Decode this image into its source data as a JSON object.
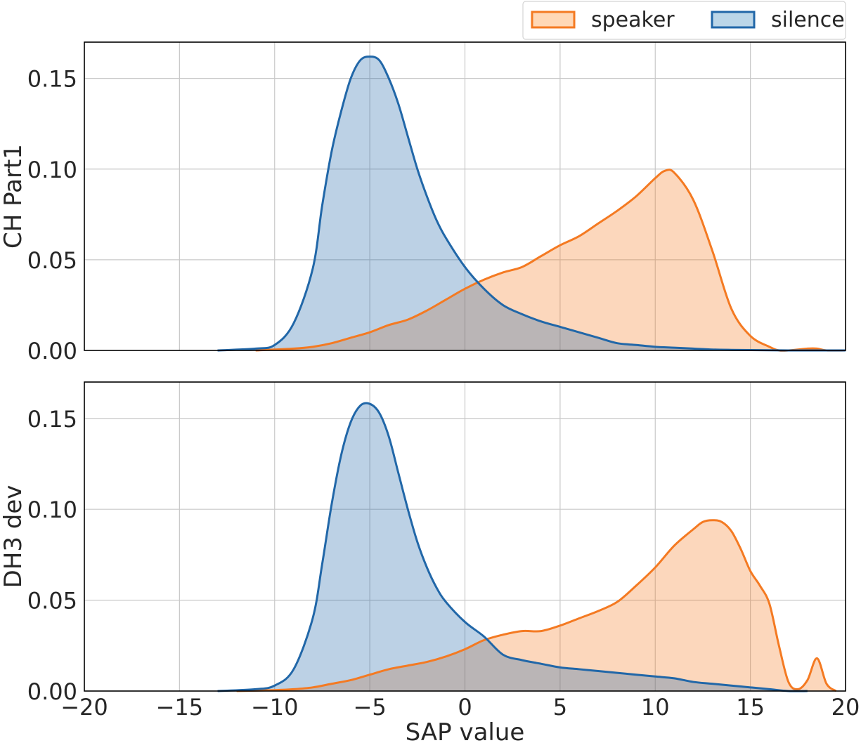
{
  "chart_data": {
    "type": "area",
    "subtype": "kde-density",
    "xlabel": "SAP value",
    "xlim": [
      -20,
      20
    ],
    "xticks": [
      -20,
      -15,
      -10,
      -5,
      0,
      5,
      10,
      15,
      20
    ],
    "xtick_labels": [
      "−20",
      "−15",
      "−10",
      "−5",
      "0",
      "5",
      "10",
      "15",
      "20"
    ],
    "yticks": [
      0.0,
      0.05,
      0.1,
      0.15
    ],
    "ytick_labels": [
      "0.00",
      "0.05",
      "0.10",
      "0.15"
    ],
    "grid": true,
    "legend": {
      "placement": "top-right, above plots",
      "entries": [
        {
          "name": "speaker",
          "color": "#ff7f0e"
        },
        {
          "name": "silence",
          "color": "#1f77b4"
        }
      ]
    },
    "colors": {
      "speaker": "#f47a22",
      "silence": "#2167a8",
      "fill_alpha": 0.3
    },
    "panels": [
      {
        "ylabel": "CH Part1",
        "ylim": [
          0,
          0.17
        ],
        "series": [
          {
            "name": "speaker",
            "x": [
              -11,
              -9,
              -8,
              -7,
              -6,
              -5,
              -4,
              -3,
              -2,
              -1,
              0,
              1,
              2,
              3,
              4,
              5,
              6,
              7,
              8,
              9,
              10,
              10.5,
              11,
              12,
              13,
              14,
              15,
              16,
              16.5,
              17,
              18,
              18.5,
              19,
              20
            ],
            "y": [
              0.0,
              0.001,
              0.002,
              0.004,
              0.007,
              0.01,
              0.014,
              0.017,
              0.022,
              0.028,
              0.034,
              0.039,
              0.043,
              0.046,
              0.052,
              0.058,
              0.063,
              0.07,
              0.077,
              0.085,
              0.095,
              0.099,
              0.098,
              0.083,
              0.055,
              0.023,
              0.008,
              0.002,
              0.0,
              0.0,
              0.001,
              0.001,
              0.0,
              0.0
            ]
          },
          {
            "name": "silence",
            "x": [
              -13,
              -11,
              -10,
              -9,
              -8,
              -7.5,
              -7,
              -6.5,
              -6,
              -5.5,
              -5,
              -4.5,
              -4,
              -3.5,
              -3,
              -2.5,
              -2,
              -1.5,
              -1,
              0,
              1,
              2,
              3,
              4,
              5,
              6,
              7,
              8,
              9,
              10,
              11,
              12,
              13,
              14,
              15,
              16,
              17,
              18,
              20
            ],
            "y": [
              0.0,
              0.001,
              0.003,
              0.015,
              0.045,
              0.08,
              0.11,
              0.132,
              0.15,
              0.16,
              0.162,
              0.16,
              0.15,
              0.136,
              0.118,
              0.1,
              0.085,
              0.072,
              0.062,
              0.046,
              0.034,
              0.025,
              0.02,
              0.016,
              0.013,
              0.01,
              0.007,
              0.004,
              0.003,
              0.002,
              0.0015,
              0.001,
              0.0005,
              0.0003,
              0.0002,
              0.0001,
              0.0,
              0.0,
              0.0
            ]
          }
        ]
      },
      {
        "ylabel": "DH3 dev",
        "ylim": [
          0,
          0.17
        ],
        "series": [
          {
            "name": "speaker",
            "x": [
              -12,
              -10,
              -9,
              -8,
              -7,
              -6,
              -5,
              -4,
              -3,
              -2,
              -1,
              0,
              1,
              2,
              3,
              4,
              5,
              6,
              7,
              8,
              9,
              10,
              11,
              12,
              12.5,
              13,
              13.5,
              14,
              14.5,
              15,
              15.5,
              16,
              16.5,
              17,
              17.5,
              18,
              18.5,
              19,
              19.5
            ],
            "y": [
              0.0,
              0.0005,
              0.001,
              0.002,
              0.004,
              0.006,
              0.009,
              0.012,
              0.014,
              0.016,
              0.019,
              0.023,
              0.028,
              0.031,
              0.033,
              0.033,
              0.036,
              0.04,
              0.044,
              0.049,
              0.058,
              0.068,
              0.08,
              0.089,
              0.093,
              0.094,
              0.093,
              0.088,
              0.078,
              0.066,
              0.058,
              0.048,
              0.025,
              0.005,
              0.001,
              0.006,
              0.018,
              0.004,
              0.0
            ]
          },
          {
            "name": "silence",
            "x": [
              -13,
              -11,
              -10,
              -9,
              -8,
              -7.5,
              -7,
              -6.5,
              -6,
              -5.5,
              -5,
              -4.5,
              -4,
              -3.5,
              -3,
              -2.5,
              -2,
              -1.5,
              -1,
              0,
              1,
              2,
              3,
              4,
              5,
              6,
              7,
              8,
              9,
              10,
              11,
              12,
              13,
              14,
              15,
              16,
              17,
              18
            ],
            "y": [
              0.0,
              0.001,
              0.003,
              0.012,
              0.04,
              0.07,
              0.103,
              0.13,
              0.148,
              0.157,
              0.158,
              0.153,
              0.14,
              0.12,
              0.1,
              0.082,
              0.068,
              0.057,
              0.049,
              0.038,
              0.03,
              0.02,
              0.017,
              0.015,
              0.013,
              0.012,
              0.011,
              0.01,
              0.009,
              0.008,
              0.007,
              0.005,
              0.004,
              0.003,
              0.002,
              0.001,
              0.0,
              0.0
            ]
          }
        ]
      }
    ]
  }
}
